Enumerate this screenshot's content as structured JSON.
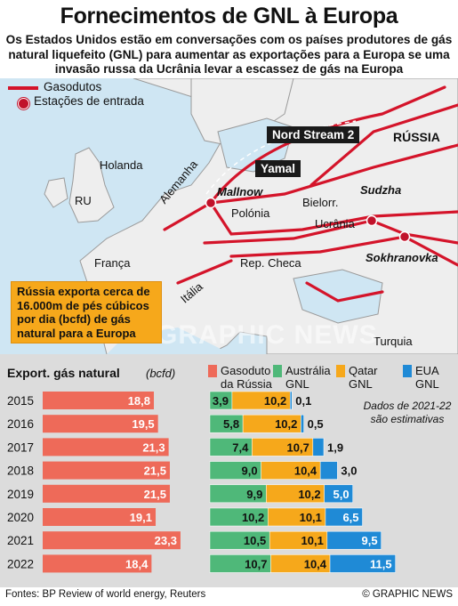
{
  "title": "Fornecimentos de GNL à Europa",
  "subtitle": "Os Estados Unidos estão em conversações com os países produtores de gás natural liquefeito (GNL) para aumentar as exportações para a Europa se uma invasão russa da Ucrânia levar a escassez de gás na Europa",
  "legend": {
    "pipelines": "Gasodutos",
    "entry_stations": "Estações de entrada"
  },
  "map": {
    "callouts": {
      "nord_stream": "Nord Stream 2",
      "yamal": "Yamal"
    },
    "countries": {
      "russia": "RÚSSIA",
      "holland": "Holanda",
      "uk": "RU",
      "germany": "Alemanha",
      "poland": "Polónia",
      "belarus": "Bielorr.",
      "ukraine": "Ucrânia",
      "france": "França",
      "czech": "Rep. Checa",
      "italy": "Itália",
      "turkey": "Turquia"
    },
    "stations": {
      "mallnow": "Mallnow",
      "sudzha": "Sudzha",
      "sokhranovka": "Sokhranovka"
    },
    "watermark": "GRAPHIC NEWS",
    "note": "Rússia exporta cerca de 16.000m de pés cúbicos por dia (bcfd) de gás natural para a Europa"
  },
  "chart_data": {
    "type": "bar",
    "title": "Export. gás natural",
    "unit": "(bcfd)",
    "note": "Dados de 2021-22 são estimativas",
    "categories": [
      "2015",
      "2016",
      "2017",
      "2018",
      "2019",
      "2020",
      "2021",
      "2022"
    ],
    "series": [
      {
        "name": "Gasoduto da Rússia",
        "color": "#ee6a59",
        "values": [
          18.8,
          19.5,
          21.3,
          21.5,
          21.5,
          19.1,
          23.3,
          18.4
        ],
        "labels": [
          "18,8",
          "19,5",
          "21,3",
          "21,5",
          "21,5",
          "19,1",
          "23,3",
          "18,4"
        ]
      },
      {
        "name": "Austrália GNL",
        "color": "#4fb879",
        "values": [
          3.9,
          5.8,
          7.4,
          9.0,
          9.9,
          10.2,
          10.5,
          10.7
        ],
        "labels": [
          "3,9",
          "5,8",
          "7,4",
          "9,0",
          "9,9",
          "10,2",
          "10,5",
          "10,7"
        ]
      },
      {
        "name": "Qatar GNL",
        "color": "#f6a81b",
        "values": [
          10.2,
          10.2,
          10.7,
          10.4,
          10.2,
          10.1,
          10.1,
          10.4
        ],
        "labels": [
          "10,2",
          "10,2",
          "10,7",
          "10,4",
          "10,2",
          "10,1",
          "10,1",
          "10,4"
        ]
      },
      {
        "name": "EUA GNL",
        "color": "#1f8ad6",
        "values": [
          0.1,
          0.5,
          1.9,
          3.0,
          5.0,
          6.5,
          9.5,
          11.5
        ],
        "labels": [
          "0,1",
          "0,5",
          "1,9",
          "3,0",
          "5,0",
          "6,5",
          "9,5",
          "11,5"
        ]
      }
    ]
  },
  "footer": {
    "sources": "Fontes: BP Review of world energy, Reuters",
    "copyright": "© GRAPHIC NEWS"
  }
}
